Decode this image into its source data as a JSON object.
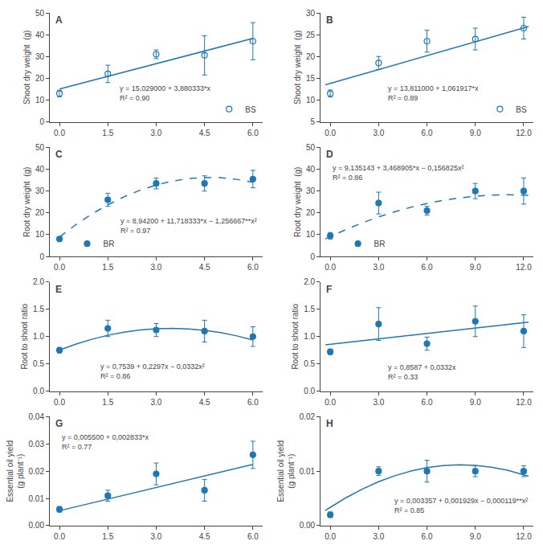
{
  "chart_data": [
    {
      "type": "scatter",
      "title": "A",
      "ylabel": "Shoot dry weight  (g)",
      "grid": false,
      "legend": "lower right",
      "xlim": [
        -0.3,
        6.3
      ],
      "xticks": [
        {
          "value": 0,
          "label": "0.0"
        },
        1.5,
        {
          "value": 3,
          "label": "3.0"
        },
        4.5,
        {
          "value": 6,
          "label": "6.0"
        }
      ],
      "ylim": [
        0,
        50
      ],
      "yticks": [
        0,
        10,
        20,
        30,
        40,
        50
      ],
      "annotations": [
        {
          "text": "y = 15,029000 + 3,880333*x\nR² = 0.90"
        }
      ],
      "series": [
        {
          "type": "scatter",
          "name": "BS",
          "x": [
            0,
            1.5,
            3,
            4.5,
            6
          ],
          "values": [
            13,
            22,
            31,
            30.5,
            37
          ],
          "errors": [
            1.5,
            4,
            2,
            9,
            8.5
          ],
          "marker": "circle-open",
          "color": "#1f77b4"
        },
        {
          "type": "line",
          "x": [
            0,
            6
          ],
          "values": [
            15.029,
            38.310998
          ],
          "line_style": "solid",
          "color": "#1f77b4"
        }
      ]
    },
    {
      "type": "scatter",
      "title": "B",
      "ylabel": "Shoot dry weight  (g)",
      "grid": false,
      "legend": "lower right",
      "xlim": [
        -0.6,
        12.6
      ],
      "xticks": [
        {
          "value": 0,
          "label": "0.0"
        },
        {
          "value": 3,
          "label": "3.0"
        },
        {
          "value": 6,
          "label": "6.0"
        },
        {
          "value": 9,
          "label": "9.0"
        },
        {
          "value": 12,
          "label": "12.0"
        }
      ],
      "ylim": [
        5,
        30
      ],
      "yticks": [
        5,
        10,
        15,
        20,
        25,
        30
      ],
      "annotations": [
        {
          "text": "y = 13,811000 + 1,061917*x\nR² = 0.89"
        }
      ],
      "series": [
        {
          "type": "scatter",
          "name": "BS",
          "x": [
            0,
            3,
            6,
            9,
            12
          ],
          "values": [
            11.5,
            18.5,
            23.5,
            24,
            26.5
          ],
          "errors": [
            0.8,
            1.5,
            2.5,
            2.5,
            2.5
          ],
          "marker": "circle-open",
          "color": "#1f77b4"
        },
        {
          "type": "line",
          "x": [
            -0.3,
            12.3
          ],
          "values": [
            13.4924249,
            26.8725791
          ],
          "line_style": "solid",
          "color": "#1f77b4"
        }
      ]
    },
    {
      "type": "scatter",
      "title": "C",
      "ylabel": "Root dry weight  (g)",
      "grid": false,
      "legend": "lower left",
      "xlim": [
        -0.3,
        6.3
      ],
      "xticks": [
        {
          "value": 0,
          "label": "0.0"
        },
        1.5,
        {
          "value": 3,
          "label": "3.0"
        },
        4.5,
        {
          "value": 6,
          "label": "6.0"
        }
      ],
      "ylim": [
        0,
        50
      ],
      "yticks": [
        0,
        10,
        20,
        30,
        40,
        50
      ],
      "annotations": [
        {
          "text": "y = 8,94200 + 11,718333*x − 1,256667**x²\nR² = 0.97"
        }
      ],
      "series": [
        {
          "type": "scatter",
          "name": "BR",
          "x": [
            0,
            1.5,
            3,
            4.5,
            6
          ],
          "values": [
            8,
            26,
            33.5,
            33.5,
            35.5
          ],
          "errors": [
            1,
            3,
            2.5,
            3.5,
            4
          ],
          "marker": "circle",
          "color": "#1f77b4"
        },
        {
          "type": "line",
          "x": [
            0,
            0.5,
            1,
            1.5,
            2,
            2.5,
            3,
            3.5,
            4,
            4.5,
            5,
            5.5,
            6
          ],
          "values": [
            8.942,
            14.48699975,
            19.403666,
            23.69199875,
            27.351998,
            30.38366375,
            32.786996,
            34.56199475,
            35.70866,
            36.22699175,
            36.11699,
            35.37865475,
            34.011986
          ],
          "line_style": "dash",
          "color": "#1f77b4"
        }
      ]
    },
    {
      "type": "scatter",
      "title": "D",
      "ylabel": "Root dry weight  (g)",
      "grid": false,
      "legend": "lower left",
      "xlim": [
        -0.6,
        12.6
      ],
      "xticks": [
        {
          "value": 0,
          "label": "0.0"
        },
        {
          "value": 3,
          "label": "3.0"
        },
        {
          "value": 6,
          "label": "6.0"
        },
        {
          "value": 9,
          "label": "9.0"
        },
        {
          "value": 12,
          "label": "12.0"
        }
      ],
      "ylim": [
        0,
        50
      ],
      "yticks": [
        0,
        10,
        20,
        30,
        40,
        50
      ],
      "annotations": [
        {
          "text": "y = 9,135143 + 3,468905*x − 0,156825x²\nR² = 0.86"
        }
      ],
      "series": [
        {
          "type": "scatter",
          "name": "BR",
          "x": [
            0,
            3,
            6,
            9,
            12
          ],
          "values": [
            9.5,
            24.5,
            21,
            30,
            30
          ],
          "errors": [
            1.5,
            5,
            2,
            3.5,
            6
          ],
          "marker": "circle",
          "color": "#1f77b4"
        },
        {
          "type": "line",
          "x": [
            -0.3,
            0,
            1,
            2,
            3,
            4,
            5,
            6,
            7,
            8,
            9,
            10,
            11,
            12,
            12.3
          ],
          "values": [
            8.08035725,
            9.135143,
            12.447223,
            15.445653,
            18.130433,
            20.501563,
            22.559043,
            24.302873,
            25.733053,
            26.849583,
            27.652463,
            28.141693,
            28.317273,
            28.179203,
            28.07662025
          ],
          "line_style": "dash",
          "color": "#1f77b4"
        }
      ]
    },
    {
      "type": "scatter",
      "title": "E",
      "ylabel": "Root to shoot ratio",
      "grid": false,
      "xlim": [
        -0.3,
        6.3
      ],
      "xticks": [
        {
          "value": 0,
          "label": "0.0"
        },
        1.5,
        {
          "value": 3,
          "label": "3.0"
        },
        4.5,
        {
          "value": 6,
          "label": "6.0"
        }
      ],
      "ylim": [
        0,
        2
      ],
      "yticks": [
        {
          "value": 0,
          "label": "0.0"
        },
        0.5,
        {
          "value": 1,
          "label": "1.0"
        },
        1.5,
        {
          "value": 2,
          "label": "2.0"
        }
      ],
      "annotations": [
        {
          "text": "y = 0,7539 + 0,2297x − 0,0332x²\nR² = 0.86"
        }
      ],
      "series": [
        {
          "type": "scatter",
          "x": [
            0,
            1.5,
            3,
            4.5,
            6
          ],
          "values": [
            0.75,
            1.15,
            1.12,
            1.1,
            1.0
          ],
          "errors": [
            0.05,
            0.15,
            0.12,
            0.2,
            0.18
          ],
          "marker": "circle",
          "color": "#1f77b4"
        },
        {
          "type": "line",
          "x": [
            0,
            0.5,
            1,
            1.5,
            2,
            2.5,
            3,
            3.5,
            4,
            4.5,
            5,
            5.5,
            6
          ],
          "values": [
            0.7539,
            0.86045,
            0.9504,
            1.02375,
            1.0805,
            1.12065,
            1.1442,
            1.15115,
            1.1415,
            1.11525,
            1.0724,
            1.01295,
            0.9369
          ],
          "line_style": "solid",
          "color": "#1f77b4"
        }
      ]
    },
    {
      "type": "scatter",
      "title": "F",
      "ylabel": "Root to shoot ratio",
      "grid": false,
      "xlim": [
        -0.6,
        12.6
      ],
      "xticks": [
        {
          "value": 0,
          "label": "0.0"
        },
        {
          "value": 3,
          "label": "3.0"
        },
        {
          "value": 6,
          "label": "6.0"
        },
        {
          "value": 9,
          "label": "9.0"
        },
        {
          "value": 12,
          "label": "12.0"
        }
      ],
      "ylim": [
        0,
        2
      ],
      "yticks": [
        {
          "value": 0,
          "label": "0.0"
        },
        0.5,
        {
          "value": 1,
          "label": "1.0"
        },
        1.5,
        {
          "value": 2,
          "label": "2.0"
        }
      ],
      "annotations": [
        {
          "text": "y = 0,8587 + 0,0332x\nR² = 0.33"
        }
      ],
      "series": [
        {
          "type": "scatter",
          "x": [
            0,
            3,
            6,
            9,
            12
          ],
          "values": [
            0.72,
            1.23,
            0.87,
            1.28,
            1.1
          ],
          "errors": [
            0.05,
            0.3,
            0.12,
            0.28,
            0.3
          ],
          "marker": "circle",
          "color": "#1f77b4"
        },
        {
          "type": "line",
          "x": [
            -0.3,
            12.3
          ],
          "values": [
            0.84874,
            1.26706
          ],
          "line_style": "solid",
          "color": "#1f77b4"
        }
      ]
    },
    {
      "type": "scatter",
      "title": "G",
      "ylabel": "Essential oil yield (g plant⁻¹)",
      "grid": false,
      "xlim": [
        -0.3,
        6.3
      ],
      "xticks": [
        {
          "value": 0,
          "label": "0.0"
        },
        1.5,
        {
          "value": 3,
          "label": "3.0"
        },
        4.5,
        {
          "value": 6,
          "label": "6.0"
        }
      ],
      "ylim": [
        0,
        0.04
      ],
      "yticks": [
        {
          "value": 0,
          "label": "0.00"
        },
        0.01,
        0.02,
        0.03,
        0.04
      ],
      "annotations": [
        {
          "text": "y = 0,005500 + 0,002833*x\nR² = 0.77"
        }
      ],
      "series": [
        {
          "type": "scatter",
          "x": [
            0,
            1.5,
            3,
            4.5,
            6
          ],
          "values": [
            0.006,
            0.011,
            0.019,
            0.013,
            0.026
          ],
          "errors": [
            0.001,
            0.002,
            0.004,
            0.004,
            0.005
          ],
          "marker": "circle",
          "color": "#1f77b4"
        },
        {
          "type": "line",
          "x": [
            0,
            6
          ],
          "values": [
            0.0055,
            0.022498
          ],
          "line_style": "solid",
          "color": "#1f77b4"
        }
      ]
    },
    {
      "type": "scatter",
      "title": "H",
      "ylabel": "Essential oil yield (g plant⁻¹)",
      "grid": false,
      "xlim": [
        -0.6,
        12.6
      ],
      "xticks": [
        {
          "value": 0,
          "label": "0.0"
        },
        {
          "value": 3,
          "label": "3.0"
        },
        {
          "value": 6,
          "label": "6.0"
        },
        {
          "value": 9,
          "label": "9.0"
        },
        {
          "value": 12,
          "label": "12.0"
        }
      ],
      "ylim": [
        0,
        0.02
      ],
      "yticks": [
        {
          "value": 0,
          "label": "0.00"
        },
        0.01,
        0.02
      ],
      "annotations": [
        {
          "text": "y = 0,003357 + 0,001929x − 0,000119**x²\nR² = 0.85"
        }
      ],
      "series": [
        {
          "type": "scatter",
          "x": [
            0,
            3,
            6,
            9,
            12
          ],
          "values": [
            0.002,
            0.01,
            0.01,
            0.01,
            0.01
          ],
          "errors": [
            0.0005,
            0.0008,
            0.002,
            0.001,
            0.001
          ],
          "marker": "circle",
          "color": "#1f77b4"
        },
        {
          "type": "line",
          "x": [
            -0.3,
            0,
            1,
            2,
            3,
            4,
            5,
            6,
            7,
            8,
            9,
            10,
            11,
            12,
            12.3
          ],
          "values": [
            0.00276759,
            0.003357,
            0.005167,
            0.006739,
            0.008073,
            0.009169,
            0.010027,
            0.010647,
            0.011029,
            0.011173,
            0.011079,
            0.010747,
            0.010177,
            0.009369,
            0.00908019
          ],
          "line_style": "solid",
          "color": "#1f77b4"
        }
      ]
    }
  ]
}
